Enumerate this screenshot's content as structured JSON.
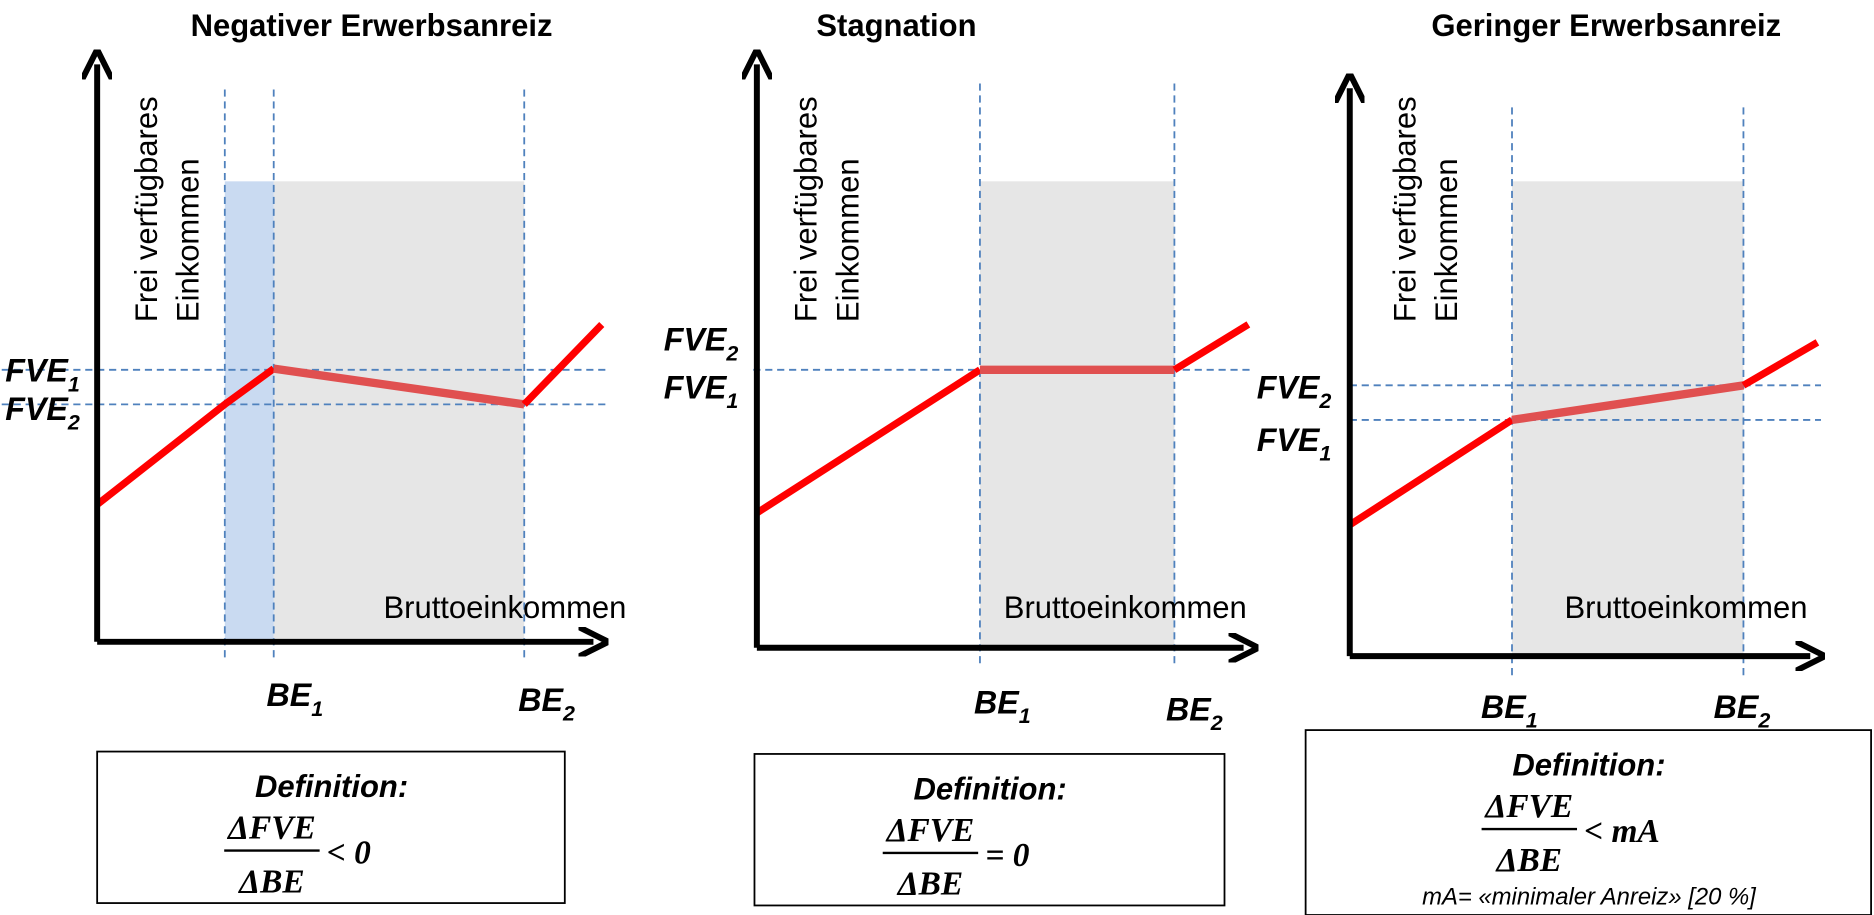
{
  "panels": [
    {
      "title": "Negativer Erwerbsanreiz",
      "y_axis_label": [
        "Frei verfügbares",
        "Einkommen"
      ],
      "x_axis_label": "Bruttoeinkommen",
      "y_labels": [
        {
          "base": "FVE",
          "sub": "1"
        },
        {
          "base": "FVE",
          "sub": "2"
        }
      ],
      "x_labels": [
        {
          "base": "BE",
          "sub": "1"
        },
        {
          "base": "BE",
          "sub": "2"
        }
      ],
      "definition": {
        "heading": "Definition:",
        "numerator": "ΔFVE",
        "denominator": "ΔBE",
        "relation": "< 0"
      }
    },
    {
      "title": "Stagnation",
      "y_axis_label": [
        "Frei verfügbares",
        "Einkommen"
      ],
      "x_axis_label": "Bruttoeinkommen",
      "y_labels": [
        {
          "base": "FVE",
          "sub": "2"
        },
        {
          "base": "FVE",
          "sub": "1"
        }
      ],
      "x_labels": [
        {
          "base": "BE",
          "sub": "1"
        },
        {
          "base": "BE",
          "sub": "2"
        }
      ],
      "definition": {
        "heading": "Definition:",
        "numerator": "ΔFVE",
        "denominator": "ΔBE",
        "relation": "= 0"
      }
    },
    {
      "title": "Geringer Erwerbsanreiz",
      "y_axis_label": [
        "Frei verfügbares",
        "Einkommen"
      ],
      "x_axis_label": "Bruttoeinkommen",
      "y_labels": [
        {
          "base": "FVE",
          "sub": "2"
        },
        {
          "base": "FVE",
          "sub": "1"
        }
      ],
      "x_labels": [
        {
          "base": "BE",
          "sub": "1"
        },
        {
          "base": "BE",
          "sub": "2"
        }
      ],
      "definition": {
        "heading": "Definition:",
        "numerator": "ΔFVE",
        "denominator": "ΔBE",
        "relation": "< mA",
        "note": "mA= «minimaler Anreiz» [20 %]"
      }
    }
  ]
}
